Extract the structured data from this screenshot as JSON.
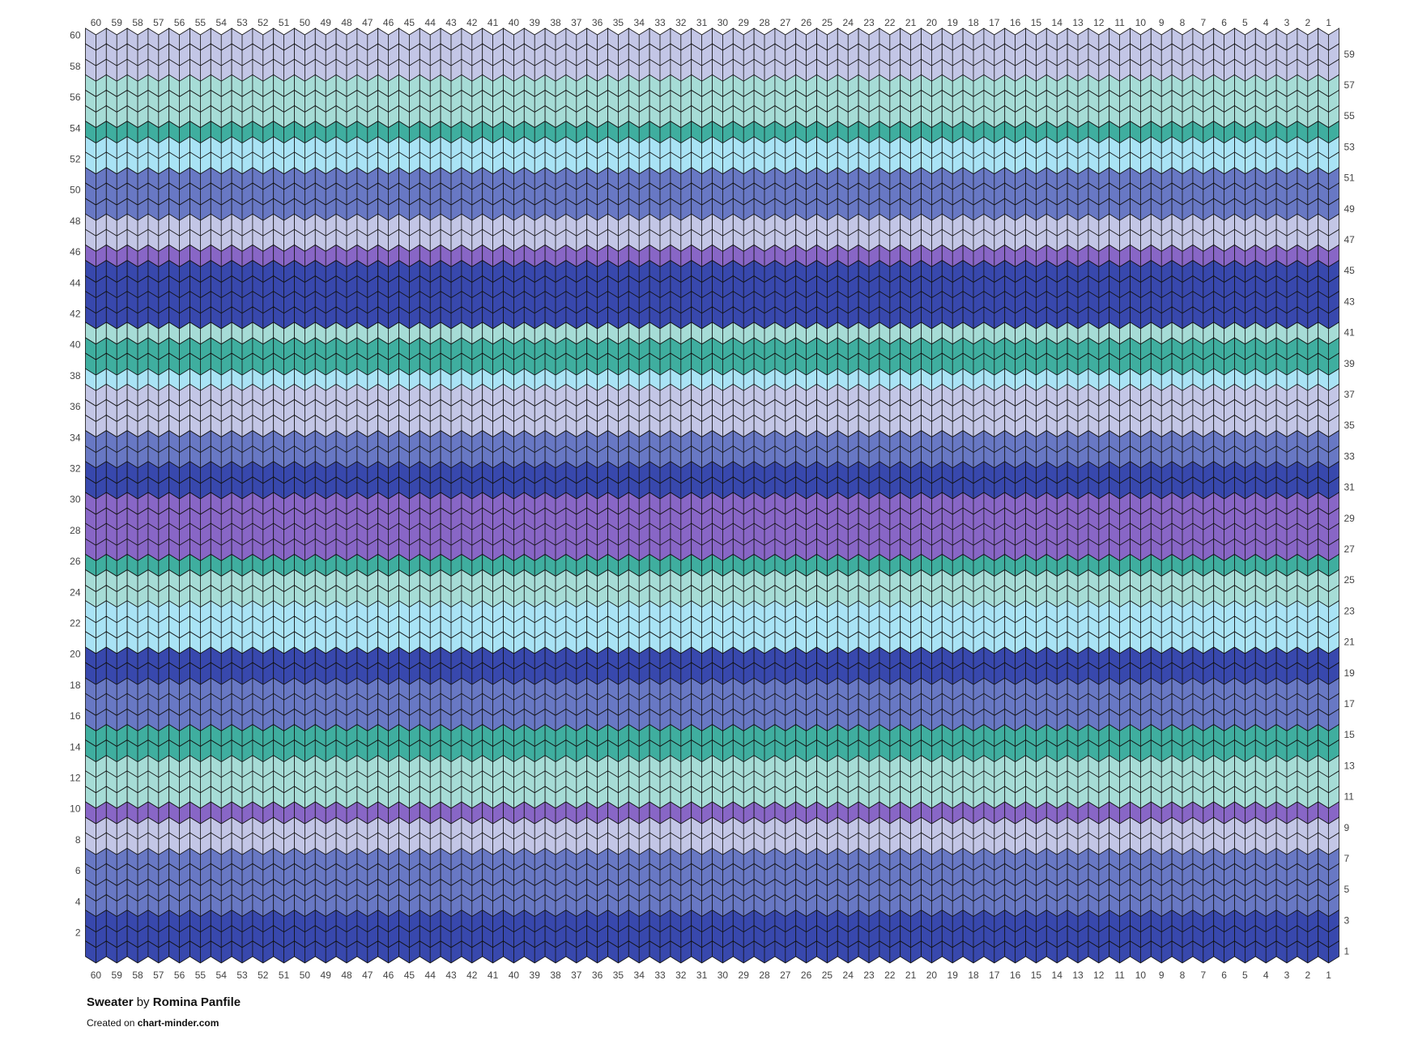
{
  "chart": {
    "title": "Sweater",
    "by": "by",
    "author": "Romina Panfile",
    "created_prefix": "Created on",
    "site": "chart-minder.com",
    "columns": [
      1,
      2,
      3,
      4,
      5,
      6,
      7,
      8,
      9,
      10,
      11,
      12,
      13,
      14,
      15,
      16,
      17,
      18,
      19,
      20,
      21,
      22,
      23,
      24,
      25,
      26,
      27,
      28,
      29,
      30,
      31,
      32,
      33,
      34,
      35,
      36,
      37,
      38,
      39,
      40,
      41,
      42,
      43,
      44,
      45,
      46,
      47,
      48,
      49,
      50,
      51,
      52,
      53,
      54,
      55,
      56,
      57,
      58,
      59,
      60
    ],
    "rows": [
      {
        "number": 1,
        "color": "#3848ad"
      },
      {
        "number": 2,
        "color": "#3848ad"
      },
      {
        "number": 3,
        "color": "#3848ad"
      },
      {
        "number": 4,
        "color": "#6878c4"
      },
      {
        "number": 5,
        "color": "#6878c4"
      },
      {
        "number": 6,
        "color": "#6878c4"
      },
      {
        "number": 7,
        "color": "#6878c4"
      },
      {
        "number": 8,
        "color": "#c3c6e6"
      },
      {
        "number": 9,
        "color": "#c3c6e6"
      },
      {
        "number": 10,
        "color": "#8866c6"
      },
      {
        "number": 11,
        "color": "#a6dcd6"
      },
      {
        "number": 12,
        "color": "#a6dcd6"
      },
      {
        "number": 13,
        "color": "#a6dcd6"
      },
      {
        "number": 14,
        "color": "#3fae9f"
      },
      {
        "number": 15,
        "color": "#3fae9f"
      },
      {
        "number": 16,
        "color": "#6878c4"
      },
      {
        "number": 17,
        "color": "#6878c4"
      },
      {
        "number": 18,
        "color": "#6878c4"
      },
      {
        "number": 19,
        "color": "#3848ad"
      },
      {
        "number": 20,
        "color": "#3848ad"
      },
      {
        "number": 21,
        "color": "#a9e3f5"
      },
      {
        "number": 22,
        "color": "#a9e3f5"
      },
      {
        "number": 23,
        "color": "#a9e3f5"
      },
      {
        "number": 24,
        "color": "#a6dcd6"
      },
      {
        "number": 25,
        "color": "#a6dcd6"
      },
      {
        "number": 26,
        "color": "#3fae9f"
      },
      {
        "number": 27,
        "color": "#8866c6"
      },
      {
        "number": 28,
        "color": "#8866c6"
      },
      {
        "number": 29,
        "color": "#8866c6"
      },
      {
        "number": 30,
        "color": "#8866c6"
      },
      {
        "number": 31,
        "color": "#3848ad"
      },
      {
        "number": 32,
        "color": "#3848ad"
      },
      {
        "number": 33,
        "color": "#6878c4"
      },
      {
        "number": 34,
        "color": "#6878c4"
      },
      {
        "number": 35,
        "color": "#c3c6e6"
      },
      {
        "number": 36,
        "color": "#c3c6e6"
      },
      {
        "number": 37,
        "color": "#c3c6e6"
      },
      {
        "number": 38,
        "color": "#a9e3f5"
      },
      {
        "number": 39,
        "color": "#3fae9f"
      },
      {
        "number": 40,
        "color": "#3fae9f"
      },
      {
        "number": 41,
        "color": "#a6dcd6"
      },
      {
        "number": 42,
        "color": "#3848ad"
      },
      {
        "number": 43,
        "color": "#3848ad"
      },
      {
        "number": 44,
        "color": "#3848ad"
      },
      {
        "number": 45,
        "color": "#3848ad"
      },
      {
        "number": 46,
        "color": "#8866c6"
      },
      {
        "number": 47,
        "color": "#c3c6e6"
      },
      {
        "number": 48,
        "color": "#c3c6e6"
      },
      {
        "number": 49,
        "color": "#6878c4"
      },
      {
        "number": 50,
        "color": "#6878c4"
      },
      {
        "number": 51,
        "color": "#6878c4"
      },
      {
        "number": 52,
        "color": "#a9e3f5"
      },
      {
        "number": 53,
        "color": "#a9e3f5"
      },
      {
        "number": 54,
        "color": "#3fae9f"
      },
      {
        "number": 55,
        "color": "#a6dcd6"
      },
      {
        "number": 56,
        "color": "#a6dcd6"
      },
      {
        "number": 57,
        "color": "#a6dcd6"
      },
      {
        "number": 58,
        "color": "#c3c6e6"
      },
      {
        "number": 59,
        "color": "#c3c6e6"
      },
      {
        "number": 60,
        "color": "#c3c6e6"
      }
    ]
  }
}
